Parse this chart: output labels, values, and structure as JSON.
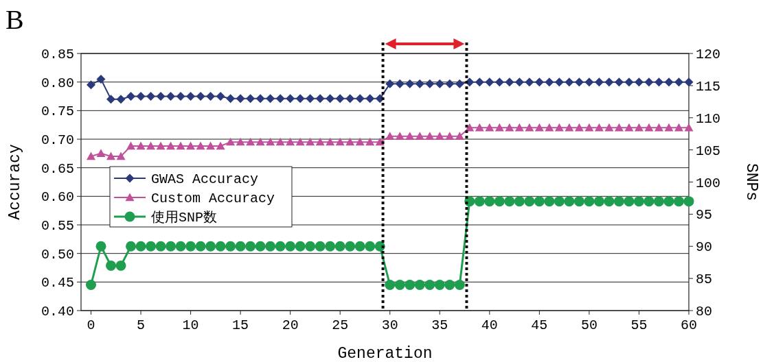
{
  "chart_data": {
    "type": "line",
    "title": "B",
    "xlabel": "Generation",
    "ylabel": "Accuracy",
    "y2label": "SNPs",
    "x": [
      0,
      1,
      2,
      3,
      4,
      5,
      6,
      7,
      8,
      9,
      10,
      11,
      12,
      13,
      14,
      15,
      16,
      17,
      18,
      19,
      20,
      21,
      22,
      23,
      24,
      25,
      26,
      27,
      28,
      29,
      30,
      31,
      32,
      33,
      34,
      35,
      36,
      37,
      38,
      39,
      40,
      41,
      42,
      43,
      44,
      45,
      46,
      47,
      48,
      49,
      50,
      51,
      52,
      53,
      54,
      55,
      56,
      57,
      58,
      59,
      60
    ],
    "series": [
      {
        "name": "GWAS Accuracy",
        "color": "#2b3a7a",
        "marker": "diamond",
        "values": [
          0.795,
          0.805,
          0.77,
          0.77,
          0.775,
          0.775,
          0.775,
          0.775,
          0.775,
          0.775,
          0.775,
          0.775,
          0.775,
          0.775,
          0.771,
          0.771,
          0.771,
          0.771,
          0.771,
          0.771,
          0.771,
          0.771,
          0.771,
          0.771,
          0.771,
          0.771,
          0.771,
          0.771,
          0.771,
          0.771,
          0.797,
          0.797,
          0.797,
          0.797,
          0.797,
          0.797,
          0.797,
          0.797,
          0.8,
          0.8,
          0.8,
          0.8,
          0.8,
          0.8,
          0.8,
          0.8,
          0.8,
          0.8,
          0.8,
          0.8,
          0.8,
          0.8,
          0.8,
          0.8,
          0.8,
          0.8,
          0.8,
          0.8,
          0.8,
          0.8,
          0.8
        ]
      },
      {
        "name": "Custom Accuracy",
        "color": "#c0509a",
        "marker": "triangle",
        "values": [
          0.67,
          0.675,
          0.67,
          0.67,
          0.688,
          0.688,
          0.688,
          0.688,
          0.688,
          0.688,
          0.688,
          0.688,
          0.688,
          0.688,
          0.695,
          0.695,
          0.695,
          0.695,
          0.695,
          0.695,
          0.695,
          0.695,
          0.695,
          0.695,
          0.695,
          0.695,
          0.695,
          0.695,
          0.695,
          0.695,
          0.705,
          0.705,
          0.705,
          0.705,
          0.705,
          0.705,
          0.705,
          0.705,
          0.72,
          0.72,
          0.72,
          0.72,
          0.72,
          0.72,
          0.72,
          0.72,
          0.72,
          0.72,
          0.72,
          0.72,
          0.72,
          0.72,
          0.72,
          0.72,
          0.72,
          0.72,
          0.72,
          0.72,
          0.72,
          0.72,
          0.72
        ]
      },
      {
        "name": "使用SNP数",
        "color": "#1f9e4f",
        "marker": "circle",
        "axis": "y2",
        "values": [
          84,
          90,
          87,
          87,
          90,
          90,
          90,
          90,
          90,
          90,
          90,
          90,
          90,
          90,
          90,
          90,
          90,
          90,
          90,
          90,
          90,
          90,
          90,
          90,
          90,
          90,
          90,
          90,
          90,
          90,
          84,
          84,
          84,
          84,
          84,
          84,
          84,
          84,
          97,
          97,
          97,
          97,
          97,
          97,
          97,
          97,
          97,
          97,
          97,
          97,
          97,
          97,
          97,
          97,
          97,
          97,
          97,
          97,
          97,
          97,
          97
        ]
      }
    ],
    "xlim": [
      -1,
      60
    ],
    "xticks": [
      0,
      5,
      10,
      15,
      20,
      25,
      30,
      35,
      40,
      45,
      50,
      55,
      60
    ],
    "ylim": [
      0.4,
      0.85
    ],
    "yticks": [
      {
        "value": 0.4,
        "label": "0.40"
      },
      {
        "value": 0.45,
        "label": "0.45"
      },
      {
        "value": 0.5,
        "label": "0.50"
      },
      {
        "value": 0.55,
        "label": "0.55"
      },
      {
        "value": 0.6,
        "label": "0.60"
      },
      {
        "value": 0.65,
        "label": "0.65"
      },
      {
        "value": 0.7,
        "label": "0.70"
      },
      {
        "value": 0.75,
        "label": "0.75"
      },
      {
        "value": 0.8,
        "label": "0.80"
      },
      {
        "value": 0.85,
        "label": "0.85"
      }
    ],
    "y2lim": [
      80,
      120
    ],
    "y2ticks": [
      80,
      85,
      90,
      95,
      100,
      105,
      110,
      115,
      120
    ],
    "ref_lines": [
      {
        "axis": "x",
        "value": 29.3,
        "color": "#111111",
        "line_style": "dotted"
      },
      {
        "axis": "x",
        "value": 37.7,
        "color": "#111111",
        "line_style": "dotted"
      }
    ],
    "grid": "y",
    "legend": "left",
    "line_style": "solid"
  }
}
